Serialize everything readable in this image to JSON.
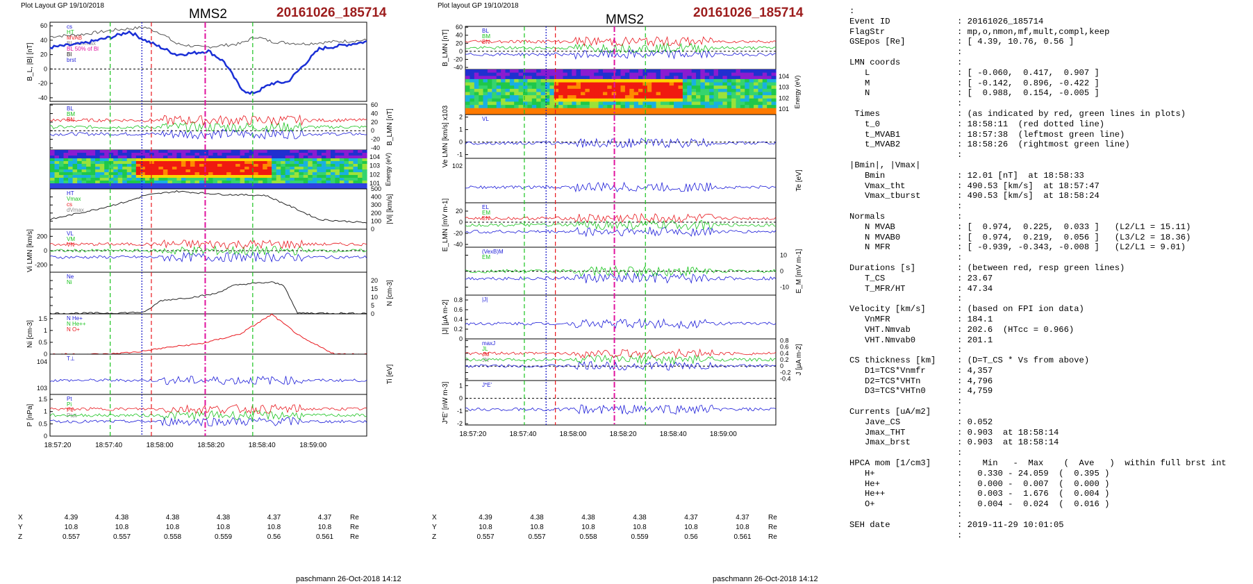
{
  "left": {
    "plot_label": "Plot Layout GP 19/10/2018",
    "spacecraft": "MMS2",
    "event": "20161026_185714",
    "footer": "paschmann 26-Oct-2018 14:12"
  },
  "middle": {
    "plot_label": "Plot layout GP 19/10/2018",
    "spacecraft": "MMS2",
    "event": "20161026_185714",
    "footer": "paschmann 26-Oct-2018 14:12"
  },
  "time_ticks": [
    "18:57:20",
    "18:57:40",
    "18:58:00",
    "18:58:20",
    "18:58:40",
    "18:59:00"
  ],
  "position_table": {
    "rows": [
      {
        "label": "X",
        "values": [
          "4.39",
          "4.38",
          "4.38",
          "4.38",
          "4.37",
          "4.37"
        ],
        "unit": "Re"
      },
      {
        "label": "Y",
        "values": [
          "10.8",
          "10.8",
          "10.8",
          "10.8",
          "10.8",
          "10.8"
        ],
        "unit": "Re"
      },
      {
        "label": "Z",
        "values": [
          "0.557",
          "0.557",
          "0.558",
          "0.559",
          "0.56",
          "0.561"
        ],
        "unit": "Re"
      }
    ]
  },
  "colors": {
    "event": "#9c1c1c",
    "red_line": "#e8161c",
    "green_line": "#19c31e",
    "magenta_line": "#e0139e",
    "blue_dot": "#1010c8"
  },
  "chart_data": [
    {
      "type": "line",
      "panel": "left-1",
      "ylabel": "B_L, |B| [nT]",
      "ylim": [
        -45,
        65
      ],
      "yticks": [
        -40,
        -20,
        0,
        20,
        40,
        60
      ],
      "legend": [
        "cs",
        "HT",
        "MVAB",
        "BL min/max",
        "BL 50% of Bl",
        "Bl",
        "brst"
      ],
      "series": [
        {
          "name": "|B|",
          "t": [
            0,
            10,
            20,
            30,
            35,
            40,
            48,
            55,
            60,
            65,
            70,
            80,
            90,
            100
          ],
          "values": [
            45,
            48,
            54,
            58,
            50,
            35,
            30,
            33,
            35,
            45,
            38,
            35,
            38,
            40
          ]
        },
        {
          "name": "BL",
          "t": [
            0,
            10,
            20,
            25,
            30,
            35,
            40,
            45,
            50,
            55,
            60,
            63,
            66,
            70,
            75,
            80,
            85,
            100
          ],
          "values": [
            30,
            35,
            45,
            52,
            40,
            30,
            20,
            22,
            25,
            10,
            -25,
            -35,
            -30,
            -20,
            -18,
            5,
            28,
            38
          ]
        }
      ]
    },
    {
      "type": "line",
      "panel": "left-2",
      "ylabel": "B_LMN [nT]",
      "ylim": [
        -45,
        62
      ],
      "yticks": [
        -40,
        -20,
        0,
        20,
        40,
        60
      ],
      "series_names": [
        "BL",
        "BM",
        "BN"
      ]
    },
    {
      "type": "heatmap",
      "panel": "left-3",
      "ylabel": "Energy (eV)",
      "yticks": [
        "10^4",
        "10^3",
        "10^2",
        "10^1"
      ]
    },
    {
      "type": "line",
      "panel": "left-4",
      "ylabel": "|Vi| [km/s]",
      "ylim": [
        0,
        500
      ],
      "yticks": [
        0,
        100,
        200,
        300,
        400,
        500
      ],
      "legend": [
        "HT",
        "Vmax",
        "cs",
        "dVmax"
      ],
      "series": [
        {
          "name": "|Vi|",
          "t": [
            0,
            15,
            25,
            30,
            40,
            55,
            68,
            75,
            85,
            100
          ],
          "values": [
            120,
            250,
            350,
            420,
            470,
            430,
            420,
            300,
            120,
            80
          ]
        }
      ]
    },
    {
      "type": "line",
      "panel": "left-5",
      "ylabel": "Vi LMN [km/s]",
      "ylim": [
        -300,
        300
      ],
      "yticks": [
        -200,
        0,
        200
      ],
      "series_names": [
        "VL",
        "VM",
        "VN"
      ]
    },
    {
      "type": "line",
      "panel": "left-6",
      "ylabel": "N [cm^-3]",
      "ylim": [
        0,
        25
      ],
      "yticks": [
        0,
        5,
        10,
        15,
        20
      ],
      "legend": [
        "Ne",
        "Ni"
      ],
      "series": [
        {
          "name": "Ne",
          "t": [
            0,
            20,
            30,
            35,
            45,
            52,
            58,
            62,
            70,
            74,
            78,
            100
          ],
          "values": [
            0.3,
            0.5,
            1,
            8,
            10,
            12,
            17,
            18,
            19,
            17,
            0.5,
            0.3
          ]
        }
      ]
    },
    {
      "type": "line",
      "panel": "left-7",
      "ylabel": "Ni [cm^-3]",
      "ylim": [
        0,
        1.7
      ],
      "yticks": [
        0,
        0.5,
        1.0,
        1.5
      ],
      "legend": [
        "N He+",
        "N He++",
        "N O+"
      ],
      "series": [
        {
          "name": "N He++",
          "t": [
            18,
            28,
            38,
            48,
            60,
            70,
            80,
            90,
            100
          ],
          "values": [
            0.0,
            0.1,
            0.3,
            0.45,
            0.85,
            1.676,
            0.65,
            0.0,
            0.0
          ]
        }
      ]
    },
    {
      "type": "line",
      "panel": "left-8",
      "ylabel": "Ti [eV]",
      "yticks": [
        "10^4",
        "10^3"
      ],
      "legend": [
        "T⊥"
      ]
    },
    {
      "type": "line",
      "panel": "left-9",
      "ylabel": "P [nPa]",
      "ylim": [
        0,
        1.7
      ],
      "yticks": [
        0,
        0.5,
        1.0,
        1.5
      ],
      "legend": [
        "Pt",
        "Pi",
        "Pe",
        "Ptot"
      ]
    },
    {
      "type": "line",
      "panel": "mid-1",
      "ylabel": "B_LMN [nT]",
      "ylim": [
        -45,
        62
      ],
      "yticks": [
        -40,
        -20,
        0,
        20,
        40,
        60
      ],
      "series_names": [
        "BL",
        "BM",
        "BN"
      ]
    },
    {
      "type": "heatmap",
      "panel": "mid-2",
      "ylabel": "Energy (eV)",
      "yticks": [
        "10^4",
        "10^3",
        "10^2",
        "10^1"
      ]
    },
    {
      "type": "line",
      "panel": "mid-3",
      "ylabel": "Ve LMN [km/s] x10^3",
      "ylim": [
        -1.3,
        2.2
      ],
      "yticks": [
        -1,
        0,
        1,
        2
      ],
      "legend": [
        "VL"
      ]
    },
    {
      "type": "line",
      "panel": "mid-4",
      "ylabel": "Te [eV]",
      "yticks": [
        "10^2"
      ]
    },
    {
      "type": "line",
      "panel": "mid-5",
      "ylabel": "E_LMN [mV m^-1]",
      "ylim": [
        -45,
        35
      ],
      "yticks": [
        -40,
        -20,
        0,
        20
      ],
      "legend": [
        "EL",
        "EM",
        "EN"
      ]
    },
    {
      "type": "line",
      "panel": "mid-6",
      "ylabel": "E_M [mV m^-1]",
      "ylim": [
        -15,
        15
      ],
      "yticks": [
        -10,
        0,
        10
      ],
      "legend": [
        "(VexB)M",
        "EM"
      ]
    },
    {
      "type": "line",
      "panel": "mid-7",
      "ylabel": "|J| [μA m^-2]",
      "ylim": [
        0,
        0.9
      ],
      "yticks": [
        0,
        0.2,
        0.4,
        0.6,
        0.8
      ],
      "legend": [
        "|J|"
      ]
    },
    {
      "type": "line",
      "panel": "mid-8",
      "ylabel": "J [μA m^-2]",
      "ylim": [
        -0.45,
        0.85
      ],
      "yticks": [
        -0.4,
        -0.2,
        0.0,
        0.2,
        0.4,
        0.6,
        0.8
      ],
      "legend": [
        "maxJ",
        "JL",
        "JM",
        "JN"
      ]
    },
    {
      "type": "line",
      "panel": "mid-9",
      "ylabel": "J*E' [nW m^-3]",
      "ylim": [
        -2.1,
        1.4
      ],
      "yticks": [
        -2,
        -1,
        0,
        1
      ],
      "legend": [
        "J*E'"
      ]
    }
  ],
  "summary": [
    {
      "k": ":",
      "v": ""
    },
    {
      "k": "Event ID",
      "v": ": 20161026_185714"
    },
    {
      "k": "FlagStr",
      "v": ": mp,o,nmon,mf,mult,compl,keep"
    },
    {
      "k": "GSEpos [Re]",
      "v": ": [ 4.39, 10.76, 0.56 ]"
    },
    {
      "k": "",
      "v": ":"
    },
    {
      "k": "LMN coords",
      "v": ":"
    },
    {
      "k": "   L",
      "v": ": [ -0.060,  0.417,  0.907 ]"
    },
    {
      "k": "   M",
      "v": ": [ -0.142,  0.896, -0.422 ]"
    },
    {
      "k": "   N",
      "v": ": [  0.988,  0.154, -0.005 ]"
    },
    {
      "k": "",
      "v": ":"
    },
    {
      "k": " Times",
      "v": ": (as indicated by red, green lines in plots)"
    },
    {
      "k": "   t_0",
      "v": ": 18:58:11  (red dotted line)"
    },
    {
      "k": "   t_MVAB1",
      "v": ": 18:57:38  (leftmost green line)"
    },
    {
      "k": "   t_MVAB2",
      "v": ": 18:58:26  (rightmost green line)"
    },
    {
      "k": "",
      "v": ":"
    },
    {
      "k": "|Bmin|, |Vmax|",
      "v": ""
    },
    {
      "k": "   Bmin",
      "v": ": 12.01 [nT]  at 18:58:33"
    },
    {
      "k": "   Vmax_tht",
      "v": ": 490.53 [km/s]  at 18:57:47"
    },
    {
      "k": "   Vmax_tburst",
      "v": ": 490.53 [km/s]  at 18:58:24"
    },
    {
      "k": "",
      "v": ":"
    },
    {
      "k": "Normals",
      "v": ":"
    },
    {
      "k": "   N MVAB",
      "v": ": [  0.974,  0.225,  0.033 ]   (L2/L1 = 15.11)"
    },
    {
      "k": "   N MVAB0",
      "v": ": [  0.974,  0.219,  0.056 ]   (L3/L2 = 18.36)"
    },
    {
      "k": "   N MFR",
      "v": ": [ -0.939, -0.343, -0.008 ]   (L2/L1 = 9.01)"
    },
    {
      "k": "",
      "v": ":"
    },
    {
      "k": "Durations [s]",
      "v": ": (between red, resp green lines)"
    },
    {
      "k": "   T_CS",
      "v": ": 23.67"
    },
    {
      "k": "   T_MFR/HT",
      "v": ": 47.34"
    },
    {
      "k": "",
      "v": ":"
    },
    {
      "k": "Velocity [km/s]",
      "v": ": (based on FPI ion data)"
    },
    {
      "k": "   VnMFR",
      "v": ": 184.1"
    },
    {
      "k": "   VHT.Nmvab",
      "v": ": 202.6  (HTcc = 0.966)"
    },
    {
      "k": "   VHT.Nmvab0",
      "v": ": 201.1"
    },
    {
      "k": "",
      "v": ":"
    },
    {
      "k": "CS thickness [km]",
      "v": ": (D=T_CS * Vs from above)"
    },
    {
      "k": "   D1=TCS*Vnmfr",
      "v": ": 4,357"
    },
    {
      "k": "   D2=TCS*VHTn",
      "v": ": 4,796"
    },
    {
      "k": "   D3=TCS*VHTn0",
      "v": ": 4,759"
    },
    {
      "k": "",
      "v": ":"
    },
    {
      "k": "Currents [uA/m2]",
      "v": ":"
    },
    {
      "k": "   Jave_CS",
      "v": ": 0.052"
    },
    {
      "k": "   Jmax_THT",
      "v": ": 0.903  at 18:58:14"
    },
    {
      "k": "   Jmax_brst",
      "v": ": 0.903  at 18:58:14"
    },
    {
      "k": "",
      "v": ":"
    },
    {
      "k": "HPCA mom [1/cm3]",
      "v": ":    Min   -  Max    (  Ave   )  within full brst int"
    },
    {
      "k": "   H+",
      "v": ":   0.330 - 24.059  (  0.395 )"
    },
    {
      "k": "   He+",
      "v": ":   0.000 -  0.007  (  0.000 )"
    },
    {
      "k": "   He++",
      "v": ":   0.003 -  1.676  (  0.004 )"
    },
    {
      "k": "   O+",
      "v": ":   0.004 -  0.024  (  0.016 )"
    },
    {
      "k": "",
      "v": ":"
    },
    {
      "k": "SEH date",
      "v": ": 2019-11-29 10:01:05"
    },
    {
      "k": "",
      "v": ":"
    }
  ]
}
